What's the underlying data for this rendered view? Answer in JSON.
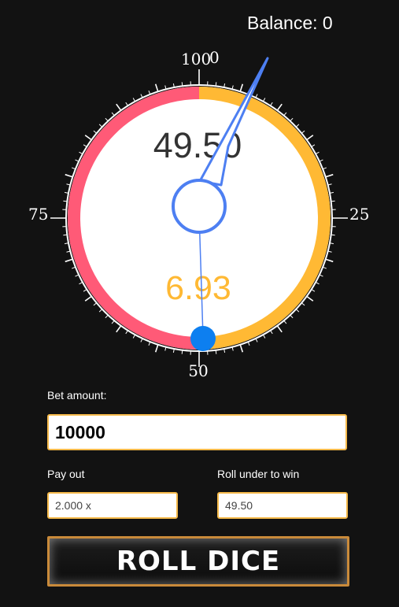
{
  "header": {
    "balance_label": "Balance:",
    "balance_value": "0"
  },
  "dial": {
    "rolled_under_value": "49.50",
    "result_value": "6.93",
    "scale_labels": {
      "top_left": "100",
      "top_right": "0",
      "right": "25",
      "bottom": "50",
      "left": "75"
    },
    "win_range_fraction": 0.495,
    "colors": {
      "lose": "#ff5a77",
      "win": "#ffb934",
      "needle": "#4d7ff2",
      "marker": "#0d7ff0",
      "result_text": "#ffb934",
      "target_text": "#333333"
    }
  },
  "form": {
    "bet_amount_label": "Bet amount:",
    "bet_amount_value": "10000",
    "payout_label": "Pay out",
    "payout_value": "2.000 x",
    "roll_under_label": "Roll under to win",
    "roll_under_value": "49.50",
    "roll_button_label": "ROLL DICE"
  }
}
